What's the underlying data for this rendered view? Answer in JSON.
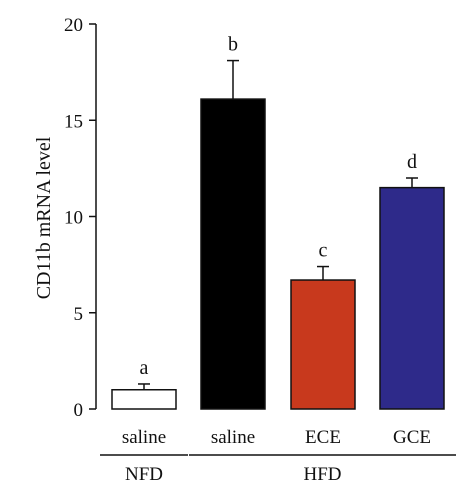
{
  "chart_data": {
    "type": "bar",
    "ylabel": "CD11b mRNA level",
    "ylim": [
      0,
      20
    ],
    "yticks": [
      0,
      5,
      10,
      15,
      20
    ],
    "grid": false,
    "categories": [
      "saline",
      "saline",
      "ECE",
      "GCE"
    ],
    "groups": [
      {
        "label": "NFD",
        "categories": [
          0
        ]
      },
      {
        "label": "HFD",
        "categories": [
          1,
          2,
          3
        ]
      }
    ],
    "values": [
      1.0,
      16.1,
      6.7,
      11.5
    ],
    "errors": [
      0.3,
      2.0,
      0.7,
      0.5
    ],
    "significance": [
      "a",
      "b",
      "c",
      "d"
    ],
    "colors": [
      "#ffffff",
      "#000000",
      "#c8391d",
      "#2e2a8a"
    ]
  }
}
